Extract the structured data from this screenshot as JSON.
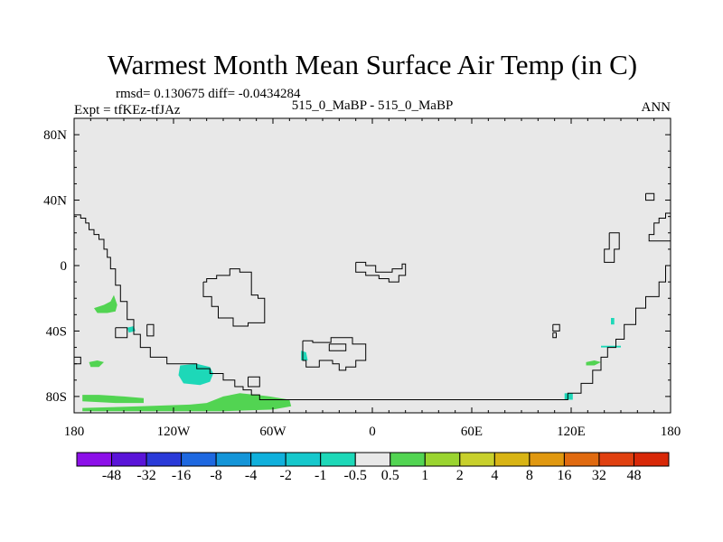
{
  "figure": {
    "title": "Warmest Month Mean Surface Air Temp (in C)",
    "stats": "rmsd= 0.130675 diff= -0.0434284",
    "experiment": "Expt = tfKEz-tfJAz",
    "comparison": "515_0_MaBP - 515_0_MaBP",
    "period": "ANN"
  },
  "map": {
    "projection": "cylindrical-equidistant",
    "lon_range": [
      -180,
      180
    ],
    "lat_range": [
      -90,
      90
    ],
    "background_color": "#e8e8e8",
    "x_ticks": [
      {
        "lon": -180,
        "label": "180"
      },
      {
        "lon": -120,
        "label": "120W"
      },
      {
        "lon": -60,
        "label": "60W"
      },
      {
        "lon": 0,
        "label": "0"
      },
      {
        "lon": 60,
        "label": "60E"
      },
      {
        "lon": 120,
        "label": "120E"
      },
      {
        "lon": 180,
        "label": "180"
      }
    ],
    "y_ticks": [
      {
        "lat": 80,
        "label": "80N"
      },
      {
        "lat": 40,
        "label": "40N"
      },
      {
        "lat": 0,
        "label": "0"
      },
      {
        "lat": -40,
        "label": "40S"
      },
      {
        "lat": -80,
        "label": "80S"
      }
    ],
    "coastlines": [
      [
        [
          -180,
          31
        ],
        [
          -176,
          31
        ],
        [
          -176,
          29
        ],
        [
          -173,
          29
        ],
        [
          -173,
          26
        ],
        [
          -171,
          26
        ],
        [
          -171,
          22
        ],
        [
          -168,
          22
        ],
        [
          -168,
          19
        ],
        [
          -165,
          19
        ],
        [
          -165,
          16
        ],
        [
          -162,
          16
        ],
        [
          -162,
          10
        ],
        [
          -160,
          10
        ],
        [
          -160,
          5
        ],
        [
          -158,
          5
        ],
        [
          -158,
          -2
        ],
        [
          -155,
          -2
        ],
        [
          -155,
          -12
        ],
        [
          -152,
          -12
        ],
        [
          -152,
          -22
        ],
        [
          -148,
          -22
        ],
        [
          -148,
          -33
        ],
        [
          -144,
          -33
        ],
        [
          -144,
          -42
        ],
        [
          -140,
          -42
        ],
        [
          -140,
          -50
        ],
        [
          -134,
          -50
        ],
        [
          -134,
          -56
        ],
        [
          -124,
          -56
        ],
        [
          -124,
          -60
        ],
        [
          -106,
          -60
        ],
        [
          -106,
          -63
        ],
        [
          -98,
          -63
        ],
        [
          -98,
          -66
        ],
        [
          -90,
          -66
        ],
        [
          -90,
          -70
        ],
        [
          -83,
          -70
        ],
        [
          -83,
          -74
        ],
        [
          -78,
          -74
        ],
        [
          -78,
          -76
        ],
        [
          -73,
          -76
        ],
        [
          -73,
          -79
        ],
        [
          -68,
          -79
        ],
        [
          -68,
          -82
        ],
        [
          118,
          -82
        ],
        [
          118,
          -78
        ],
        [
          126,
          -78
        ],
        [
          126,
          -72
        ],
        [
          133,
          -72
        ],
        [
          133,
          -64
        ],
        [
          138,
          -64
        ],
        [
          138,
          -56
        ],
        [
          142,
          -56
        ],
        [
          142,
          -50
        ],
        [
          147,
          -50
        ],
        [
          147,
          -45
        ],
        [
          152,
          -45
        ],
        [
          152,
          -36
        ],
        [
          159,
          -36
        ],
        [
          159,
          -26
        ],
        [
          165,
          -26
        ],
        [
          165,
          -19
        ],
        [
          173,
          -19
        ],
        [
          173,
          -10
        ],
        [
          177,
          -10
        ],
        [
          177,
          0
        ],
        [
          180,
          0
        ]
      ],
      [
        [
          180,
          32
        ],
        [
          177,
          32
        ],
        [
          177,
          29
        ],
        [
          173,
          29
        ],
        [
          173,
          26
        ],
        [
          170,
          26
        ],
        [
          170,
          19
        ],
        [
          167,
          19
        ],
        [
          167,
          15
        ],
        [
          180,
          15
        ]
      ],
      [
        [
          165,
          44
        ],
        [
          170,
          44
        ],
        [
          170,
          40
        ],
        [
          165,
          40
        ],
        [
          165,
          44
        ]
      ],
      [
        [
          -102,
          -10
        ],
        [
          -100,
          -10
        ],
        [
          -100,
          -8
        ],
        [
          -94,
          -8
        ],
        [
          -94,
          -6
        ],
        [
          -86,
          -6
        ],
        [
          -86,
          -2
        ],
        [
          -80,
          -2
        ],
        [
          -80,
          -4
        ],
        [
          -73,
          -4
        ],
        [
          -73,
          -18
        ],
        [
          -69,
          -18
        ],
        [
          -69,
          -20
        ],
        [
          -65,
          -20
        ],
        [
          -65,
          -35
        ],
        [
          -75,
          -35
        ],
        [
          -75,
          -37
        ],
        [
          -84,
          -37
        ],
        [
          -84,
          -32
        ],
        [
          -93,
          -32
        ],
        [
          -93,
          -25
        ],
        [
          -97,
          -25
        ],
        [
          -97,
          -19
        ],
        [
          -102,
          -19
        ],
        [
          -102,
          -10
        ]
      ],
      [
        [
          -10,
          2
        ],
        [
          -4,
          2
        ],
        [
          -4,
          0
        ],
        [
          2,
          0
        ],
        [
          2,
          -4
        ],
        [
          12,
          -4
        ],
        [
          12,
          -2
        ],
        [
          18,
          -2
        ],
        [
          18,
          1
        ],
        [
          20,
          1
        ],
        [
          20,
          -6
        ],
        [
          16,
          -6
        ],
        [
          16,
          -10
        ],
        [
          10,
          -10
        ],
        [
          10,
          -8
        ],
        [
          4,
          -8
        ],
        [
          4,
          -6
        ],
        [
          -4,
          -6
        ],
        [
          -4,
          -4
        ],
        [
          -10,
          -4
        ],
        [
          -10,
          2
        ]
      ],
      [
        [
          -42,
          -46
        ],
        [
          -36,
          -46
        ],
        [
          -36,
          -47
        ],
        [
          -25,
          -47
        ],
        [
          -25,
          -44
        ],
        [
          -12,
          -44
        ],
        [
          -12,
          -48
        ],
        [
          -4,
          -48
        ],
        [
          -4,
          -58
        ],
        [
          -10,
          -58
        ],
        [
          -10,
          -62
        ],
        [
          -16,
          -62
        ],
        [
          -16,
          -64
        ],
        [
          -20,
          -64
        ],
        [
          -20,
          -60
        ],
        [
          -24,
          -60
        ],
        [
          -24,
          -58
        ],
        [
          -32,
          -58
        ],
        [
          -32,
          -62
        ],
        [
          -40,
          -62
        ],
        [
          -40,
          -58
        ],
        [
          -42,
          -58
        ],
        [
          -42,
          -46
        ]
      ],
      [
        [
          -26,
          -48
        ],
        [
          -16,
          -48
        ],
        [
          -16,
          -52
        ],
        [
          -26,
          -52
        ],
        [
          -26,
          -48
        ]
      ],
      [
        [
          -136,
          -36
        ],
        [
          -132,
          -36
        ],
        [
          -132,
          -43
        ],
        [
          -136,
          -43
        ],
        [
          -136,
          -36
        ]
      ],
      [
        [
          -75,
          -68
        ],
        [
          -68,
          -68
        ],
        [
          -68,
          -74
        ],
        [
          -75,
          -74
        ],
        [
          -75,
          -68
        ]
      ],
      [
        [
          143,
          20
        ],
        [
          149,
          20
        ],
        [
          149,
          10
        ],
        [
          146,
          10
        ],
        [
          146,
          2
        ],
        [
          140,
          2
        ],
        [
          140,
          10
        ],
        [
          143,
          10
        ],
        [
          143,
          20
        ]
      ],
      [
        [
          109,
          -36
        ],
        [
          113,
          -36
        ],
        [
          113,
          -40
        ],
        [
          109,
          -40
        ],
        [
          109,
          -36
        ]
      ],
      [
        [
          109,
          -41
        ],
        [
          111,
          -41
        ],
        [
          111,
          -44
        ],
        [
          109,
          -44
        ],
        [
          109,
          -41
        ]
      ],
      [
        [
          -155,
          -38
        ],
        [
          -148,
          -38
        ],
        [
          -148,
          -44
        ],
        [
          -155,
          -44
        ],
        [
          -155,
          -38
        ]
      ],
      [
        [
          -180,
          -56
        ],
        [
          -176,
          -56
        ],
        [
          -176,
          -60
        ],
        [
          -180,
          -60
        ],
        [
          -180,
          -56
        ]
      ]
    ],
    "anomaly_patches": [
      {
        "class": "0.5 to 1",
        "color": "#52d452",
        "points": [
          [
            -168,
            -26
          ],
          [
            -162,
            -24
          ],
          [
            -158,
            -22
          ],
          [
            -156,
            -18
          ],
          [
            -154,
            -24
          ],
          [
            -155,
            -28
          ],
          [
            -160,
            -29
          ],
          [
            -166,
            -29
          ]
        ]
      },
      {
        "class": "-1 to -0.5",
        "color": "#1dd8b8",
        "points": [
          [
            -148,
            -38
          ],
          [
            -144,
            -37
          ],
          [
            -143,
            -40
          ],
          [
            -147,
            -41
          ]
        ]
      },
      {
        "class": "0.5 to 1",
        "color": "#52d452",
        "points": [
          [
            -171,
            -59
          ],
          [
            -166,
            -58
          ],
          [
            -162,
            -59
          ],
          [
            -165,
            -62
          ],
          [
            -170,
            -62
          ]
        ]
      },
      {
        "class": "-1 to -0.5",
        "color": "#1dd8b8",
        "points": [
          [
            -116,
            -61
          ],
          [
            -106,
            -60
          ],
          [
            -98,
            -62
          ],
          [
            -96,
            -66
          ],
          [
            -98,
            -71
          ],
          [
            -104,
            -73
          ],
          [
            -114,
            -72
          ],
          [
            -117,
            -67
          ]
        ]
      },
      {
        "class": "0.5 to 1",
        "color": "#52d452",
        "points": [
          [
            -175,
            -79
          ],
          [
            -165,
            -79
          ],
          [
            -150,
            -80
          ],
          [
            -138,
            -81
          ],
          [
            -138,
            -84
          ],
          [
            -155,
            -84
          ],
          [
            -175,
            -83
          ]
        ]
      },
      {
        "class": "0.5 to 1",
        "color": "#52d452",
        "points": [
          [
            -175,
            -87
          ],
          [
            -140,
            -86
          ],
          [
            -110,
            -85
          ],
          [
            -100,
            -84
          ],
          [
            -90,
            -80
          ],
          [
            -80,
            -78
          ],
          [
            -70,
            -79
          ],
          [
            -62,
            -80
          ],
          [
            -50,
            -82
          ],
          [
            -49,
            -86
          ],
          [
            -60,
            -88
          ],
          [
            -90,
            -89
          ],
          [
            -130,
            -89
          ],
          [
            -175,
            -89
          ]
        ]
      },
      {
        "class": "-1 to -0.5",
        "color": "#1dd8b8",
        "points": [
          [
            -43,
            -52
          ],
          [
            -40,
            -53
          ],
          [
            -39,
            -58
          ],
          [
            -43,
            -58
          ]
        ]
      },
      {
        "class": "-1 to -0.5",
        "color": "#1dd8b8",
        "points": [
          [
            116,
            -78
          ],
          [
            121,
            -78
          ],
          [
            121,
            -82
          ],
          [
            116,
            -82
          ]
        ]
      },
      {
        "class": "-1 to -0.5",
        "color": "#1dd8b8",
        "points": [
          [
            144,
            -32
          ],
          [
            146,
            -32
          ],
          [
            146,
            -36
          ],
          [
            144,
            -36
          ]
        ]
      },
      {
        "class": "-1 to -0.5",
        "color": "#1dd8b8",
        "points": [
          [
            138,
            -49
          ],
          [
            150,
            -49
          ],
          [
            150,
            -50
          ],
          [
            138,
            -50
          ]
        ]
      },
      {
        "class": "0.5 to 1",
        "color": "#52d452",
        "points": [
          [
            129,
            -59
          ],
          [
            134,
            -58
          ],
          [
            138,
            -59
          ],
          [
            134,
            -61
          ],
          [
            129,
            -61
          ]
        ]
      }
    ]
  },
  "colorbar": {
    "colors": [
      "#8c10e8",
      "#5a14d8",
      "#2a3ad8",
      "#1e68e0",
      "#1495d8",
      "#10b0dc",
      "#16c8cc",
      "#1dd8b8",
      "#e8e8e8",
      "#52d452",
      "#9ad430",
      "#c8d02c",
      "#d8b414",
      "#e09810",
      "#e06a10",
      "#e04010",
      "#d82808"
    ],
    "labels": [
      "-48",
      "-32",
      "-16",
      "-8",
      "-4",
      "-2",
      "-1",
      "-0.5",
      "0.5",
      "1",
      "2",
      "4",
      "8",
      "16",
      "32",
      "48"
    ]
  }
}
